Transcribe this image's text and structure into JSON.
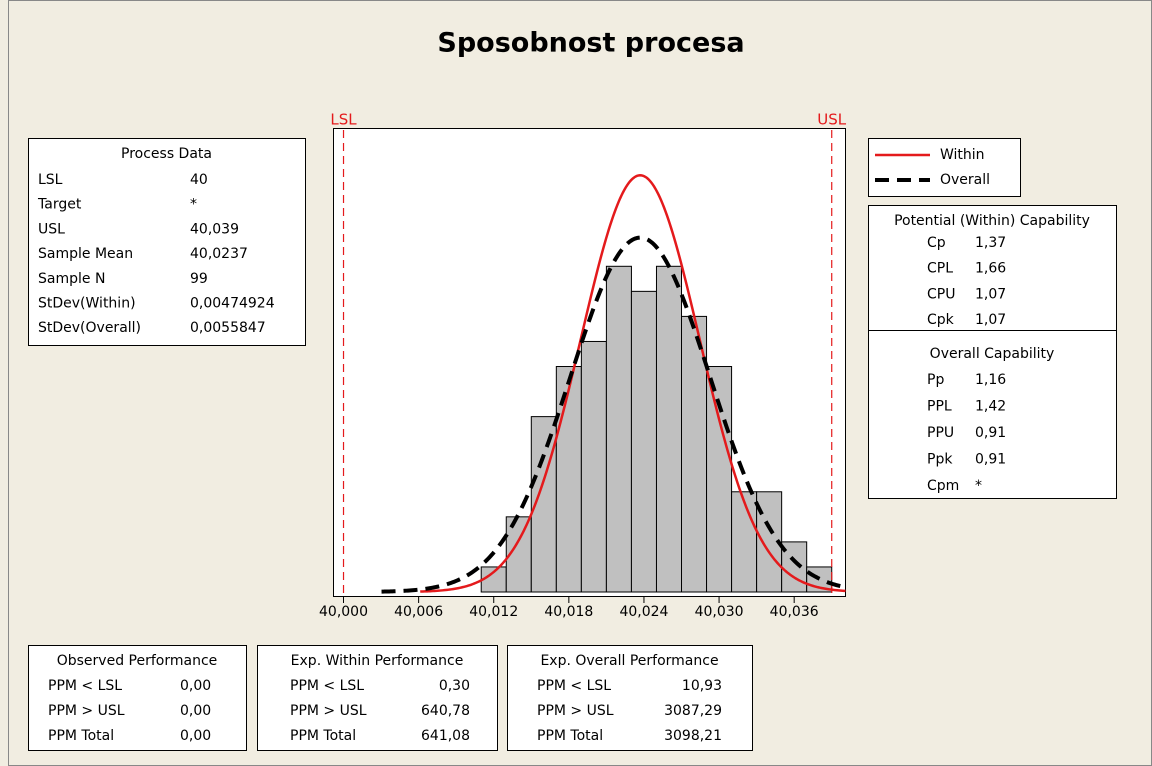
{
  "chart_data": {
    "type": "histogram",
    "title": "Sposobnost procesa",
    "bins": [
      40.011,
      40.013,
      40.015,
      40.017,
      40.019,
      40.021,
      40.023,
      40.025,
      40.027,
      40.029,
      40.031,
      40.033,
      40.035,
      40.037,
      40.039
    ],
    "counts": [
      1,
      3,
      7,
      9,
      10,
      13,
      12,
      13,
      11,
      9,
      4,
      4,
      2,
      1
    ],
    "color": "#c0c0c0",
    "n": 99,
    "xlim": [
      39.9992,
      40.0401
    ],
    "ylim": [
      0,
      18.5
    ],
    "xticks": [
      {
        "value": 40,
        "label": "40,000"
      },
      {
        "value": 40.006,
        "label": "40,006"
      },
      {
        "value": 40.012,
        "label": "40,012"
      },
      {
        "value": 40.018,
        "label": "40,018"
      },
      {
        "value": 40.024,
        "label": "40,024"
      },
      {
        "value": 40.03,
        "label": "40,030"
      },
      {
        "value": 40.036,
        "label": "40,036"
      }
    ],
    "spec_limits": [
      {
        "label": "LSL",
        "value": 40
      },
      {
        "label": "USL",
        "value": 40.039
      }
    ],
    "spec_color": "#e41a1c",
    "series": [
      {
        "name": "Within",
        "color": "#e41a1c",
        "dash": false,
        "mean": 40.0237,
        "sd": 0.00474924
      },
      {
        "name": "Overall",
        "color": "#000000",
        "dash": true,
        "mean": 40.0237,
        "sd": 0.0055847
      }
    ]
  },
  "process_data": {
    "title": "Process Data",
    "rows": [
      [
        "LSL",
        "40"
      ],
      [
        "Target",
        "*"
      ],
      [
        "USL",
        "40,039"
      ],
      [
        "Sample Mean",
        "40,0237"
      ],
      [
        "Sample N",
        "99"
      ],
      [
        "StDev(Within)",
        "0,00474924"
      ],
      [
        "StDev(Overall)",
        "0,0055847"
      ]
    ]
  },
  "potential_capability": {
    "title": "Potential (Within) Capability",
    "rows": [
      [
        "Cp",
        "1,37"
      ],
      [
        "CPL",
        "1,66"
      ],
      [
        "CPU",
        "1,07"
      ],
      [
        "Cpk",
        "1,07"
      ]
    ]
  },
  "overall_capability": {
    "title": "Overall Capability",
    "rows": [
      [
        "Pp",
        "1,16"
      ],
      [
        "PPL",
        "1,42"
      ],
      [
        "PPU",
        "0,91"
      ],
      [
        "Ppk",
        "0,91"
      ],
      [
        "Cpm",
        "*"
      ]
    ]
  },
  "observed_performance": {
    "title": "Observed Performance",
    "rows": [
      [
        "PPM < LSL",
        "0,00"
      ],
      [
        "PPM > USL",
        "0,00"
      ],
      [
        "PPM Total",
        "0,00"
      ]
    ]
  },
  "exp_within_performance": {
    "title": "Exp. Within Performance",
    "rows": [
      [
        "PPM < LSL",
        "0,30"
      ],
      [
        "PPM > USL",
        "640,78"
      ],
      [
        "PPM Total",
        "641,08"
      ]
    ]
  },
  "exp_overall_performance": {
    "title": "Exp. Overall Performance",
    "rows": [
      [
        "PPM < LSL",
        "10,93"
      ],
      [
        "PPM > USL",
        "3087,29"
      ],
      [
        "PPM Total",
        "3098,21"
      ]
    ]
  }
}
